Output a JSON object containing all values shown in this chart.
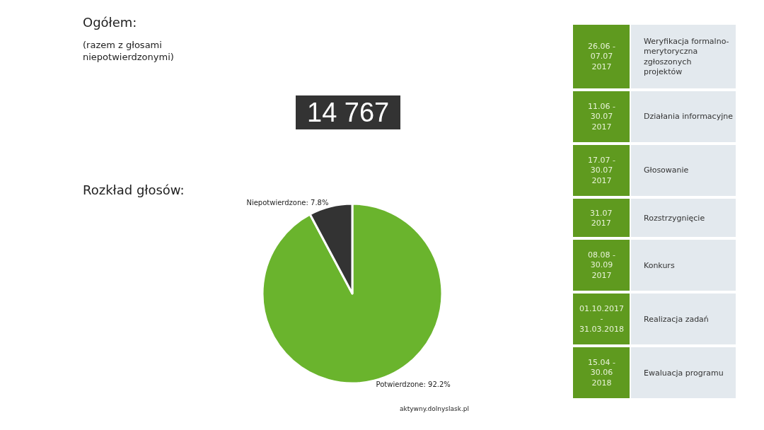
{
  "chart_data": [
    {
      "type": "other",
      "title": "Ogółem:",
      "subtitle": "(razem z głosami\nniepotwierdzonymi)",
      "annotations": [
        "14 767"
      ]
    },
    {
      "type": "pie",
      "title": "Rozkład głosów:",
      "categories": [
        "Potwierdzone",
        "Niepotwierdzone"
      ],
      "values": [
        92.2,
        7.8
      ],
      "colors": [
        "#6ab42d",
        "#333333"
      ],
      "value_labels": [
        "92.2%",
        "7.8%"
      ],
      "annotations": [
        "aktywny.dolnyslask.pl"
      ]
    },
    {
      "type": "other",
      "annotations": [
        "26.06 -\n07.07\n2017",
        "Weryfikacja formalno-\nmerytoryczna\nzgłoszonych\nprojektów",
        "11.06 -\n30.07\n2017",
        "Działania informacyjne",
        "17.07 -\n30.07\n2017",
        "Głosowanie",
        "31.07\n2017",
        "Rozstrzygnięcie",
        "08.08 -\n30.09\n2017",
        "Konkurs",
        "01.10.2017\n-\n31.03.2018",
        "Realizacja zadań",
        "15.04 -\n30.06\n2018",
        "Ewaluacja programu"
      ]
    }
  ]
}
